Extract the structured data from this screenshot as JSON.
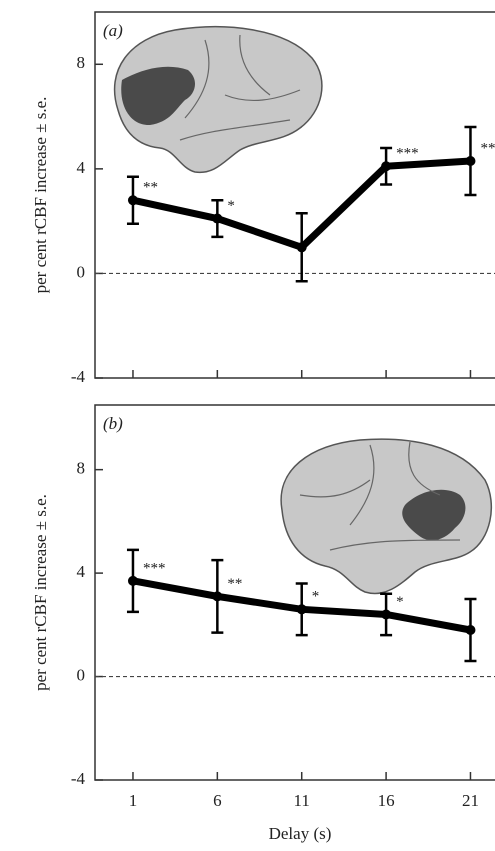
{
  "chart_data": [
    {
      "type": "line",
      "panel_label": "(a)",
      "ylabel": "per cent rCBF increase ± s.e.",
      "x": [
        1,
        6,
        11,
        16,
        21
      ],
      "values": [
        2.8,
        2.1,
        1.0,
        4.1,
        4.3
      ],
      "errors": [
        0.9,
        0.7,
        1.3,
        0.7,
        1.3
      ],
      "annotations": [
        {
          "x": 1,
          "text": "**"
        },
        {
          "x": 6,
          "text": "*"
        },
        {
          "x": 16,
          "text": "***"
        },
        {
          "x": 21,
          "text": "***"
        }
      ],
      "reference_line": 0,
      "color": "#000000",
      "xlim": [
        -1.25,
        22.75
      ],
      "ylim": [
        -4,
        10
      ],
      "xticks": [
        1,
        6,
        11,
        16,
        21
      ],
      "yticks": [
        -4,
        0,
        4,
        8
      ]
    },
    {
      "type": "line",
      "panel_label": "(b)",
      "ylabel": "per cent rCBF increase ± s.e.",
      "xlabel": "Delay (s)",
      "x": [
        1,
        6,
        11,
        16,
        21
      ],
      "values": [
        3.7,
        3.1,
        2.6,
        2.4,
        1.8
      ],
      "errors": [
        1.2,
        1.4,
        1.0,
        0.8,
        1.2
      ],
      "annotations": [
        {
          "x": 1,
          "text": "***"
        },
        {
          "x": 6,
          "text": "**"
        },
        {
          "x": 11,
          "text": "*"
        },
        {
          "x": 16,
          "text": "*"
        }
      ],
      "reference_line": 0,
      "color": "#000000",
      "xlim": [
        -1.25,
        22.75
      ],
      "ylim": [
        -4,
        10.5
      ],
      "xticks": [
        1,
        6,
        11,
        16,
        21
      ],
      "yticks": [
        -4,
        0,
        4,
        8
      ]
    }
  ]
}
